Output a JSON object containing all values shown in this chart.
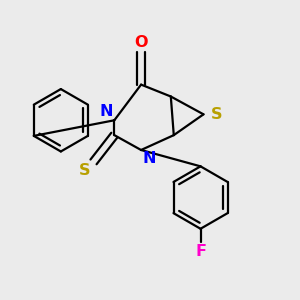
{
  "bg_color": "#ebebeb",
  "figsize": [
    3.0,
    3.0
  ],
  "dpi": 100,
  "colors": {
    "C": "#000000",
    "N": "#0000ff",
    "O": "#ff0000",
    "S": "#b8a000",
    "F": "#ff00cc",
    "bond": "#000000"
  }
}
